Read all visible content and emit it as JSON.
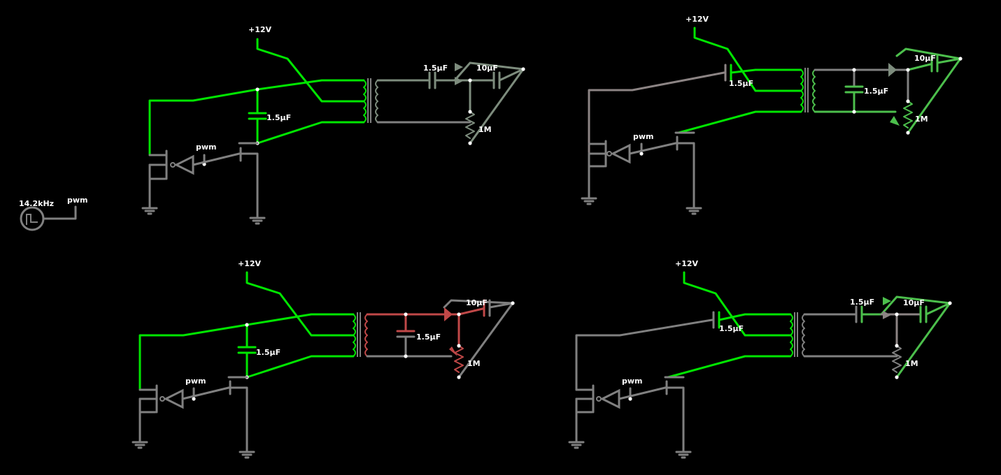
{
  "source": {
    "frequency_label": "14.2kHz",
    "output_label": "pwm"
  },
  "circuits": [
    {
      "supply_label": "+12V",
      "pwm_label": "pwm",
      "cap_primary": "1.5µF",
      "cap_a": "1.5µF",
      "cap_b": "10µF",
      "resistor": "1M"
    },
    {
      "supply_label": "+12V",
      "pwm_label": "pwm",
      "cap_primary": "1.5µF",
      "cap_a": "1.5µF",
      "cap_b": "10µF",
      "resistor": "1M"
    },
    {
      "supply_label": "+12V",
      "pwm_label": "pwm",
      "cap_primary": "1.5µF",
      "cap_a": "1.5µF",
      "cap_b": "10µF",
      "resistor": "1M"
    },
    {
      "supply_label": "+12V",
      "pwm_label": "pwm",
      "cap_primary": "1.5µF",
      "cap_a": "1.5µF",
      "cap_b": "10µF",
      "resistor": "1M"
    }
  ],
  "colors": {
    "background": "#000000",
    "current_high": "#00e600",
    "current_mid": "#4cbf4c",
    "idle": "#808080",
    "reverse": "#c04848",
    "node": "#ffffff"
  }
}
